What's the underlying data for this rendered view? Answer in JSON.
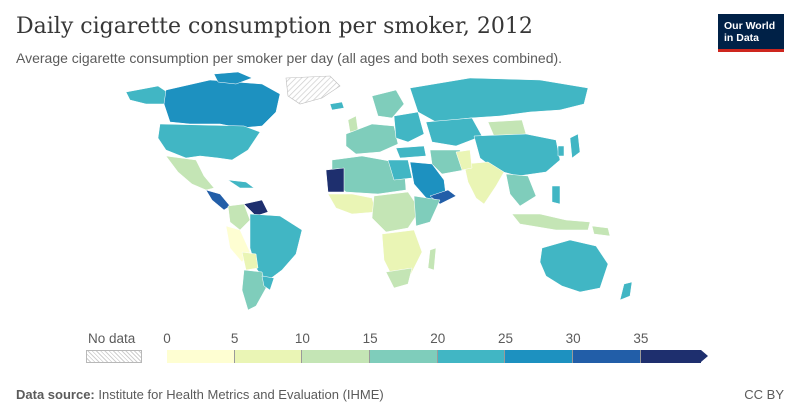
{
  "header": {
    "title": "Daily cigarette consumption per smoker, 2012",
    "subtitle": "Average cigarette consumption per smoker per day (all ages and both sexes combined)."
  },
  "logo": {
    "line1": "Our World",
    "line2": "in Data",
    "bg": "#002147",
    "accent": "#ce261e"
  },
  "legend": {
    "no_data_label": "No data",
    "ticks": [
      "0",
      "5",
      "10",
      "15",
      "20",
      "25",
      "30",
      "35"
    ],
    "bins": [
      {
        "range": [
          0,
          5
        ],
        "color": "#fefed2"
      },
      {
        "range": [
          5,
          10
        ],
        "color": "#eaf5b5"
      },
      {
        "range": [
          10,
          15
        ],
        "color": "#c4e5b5"
      },
      {
        "range": [
          15,
          20
        ],
        "color": "#7fcdbb"
      },
      {
        "range": [
          20,
          25
        ],
        "color": "#41b6c4"
      },
      {
        "range": [
          25,
          30
        ],
        "color": "#1d91c0"
      },
      {
        "range": [
          30,
          35
        ],
        "color": "#225ea8"
      },
      {
        "range": [
          35,
          null
        ],
        "color": "#1e2f6e"
      }
    ]
  },
  "footer": {
    "source_label": "Data source:",
    "source_text": "Institute for Health Metrics and Evaluation (IHME)",
    "license": "CC BY"
  }
}
